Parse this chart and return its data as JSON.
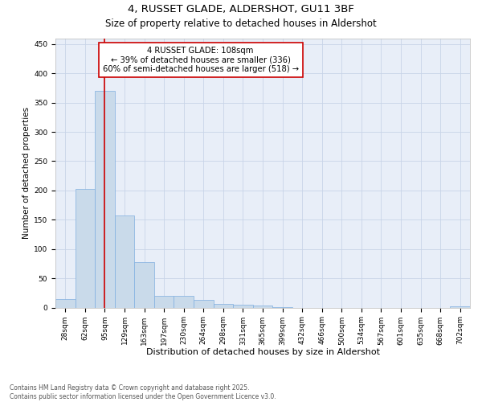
{
  "title_line1": "4, RUSSET GLADE, ALDERSHOT, GU11 3BF",
  "title_line2": "Size of property relative to detached houses in Aldershot",
  "xlabel": "Distribution of detached houses by size in Aldershot",
  "ylabel": "Number of detached properties",
  "bar_labels": [
    "28sqm",
    "62sqm",
    "95sqm",
    "129sqm",
    "163sqm",
    "197sqm",
    "230sqm",
    "264sqm",
    "298sqm",
    "331sqm",
    "365sqm",
    "399sqm",
    "432sqm",
    "466sqm",
    "500sqm",
    "534sqm",
    "567sqm",
    "601sqm",
    "635sqm",
    "668sqm",
    "702sqm"
  ],
  "bar_values": [
    15,
    202,
    370,
    157,
    78,
    20,
    20,
    13,
    6,
    5,
    4,
    1,
    0,
    0,
    0,
    0,
    0,
    0,
    0,
    0,
    2
  ],
  "bar_color": "#c9daea",
  "bar_edge_color": "#7fafe0",
  "red_line_x": 2.0,
  "annotation_text": "4 RUSSET GLADE: 108sqm\n← 39% of detached houses are smaller (336)\n60% of semi-detached houses are larger (518) →",
  "annotation_box_color": "#ffffff",
  "annotation_box_edge": "#cc0000",
  "annotation_text_color": "#000000",
  "red_line_color": "#cc0000",
  "ylim": [
    0,
    460
  ],
  "yticks": [
    0,
    50,
    100,
    150,
    200,
    250,
    300,
    350,
    400,
    450
  ],
  "grid_color": "#c8d4e8",
  "background_color": "#e8eef8",
  "footer_text": "Contains HM Land Registry data © Crown copyright and database right 2025.\nContains public sector information licensed under the Open Government Licence v3.0.",
  "title_fontsize": 9.5,
  "subtitle_fontsize": 8.5,
  "tick_fontsize": 6.5,
  "ylabel_fontsize": 7.5,
  "xlabel_fontsize": 8.0,
  "annotation_fontsize": 7.2,
  "footer_fontsize": 5.5
}
